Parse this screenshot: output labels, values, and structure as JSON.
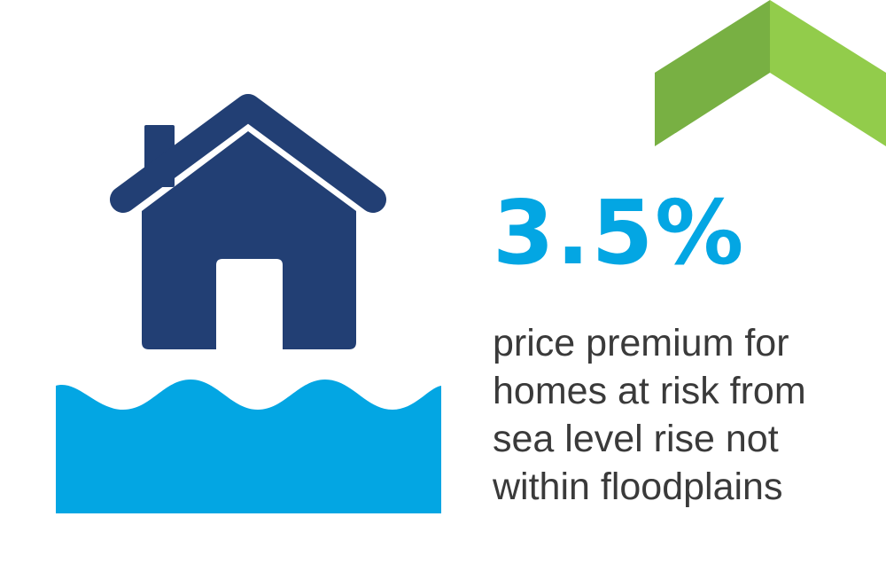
{
  "stat": {
    "value": "3.5%",
    "caption_lines": [
      "price premium for",
      "homes at risk from",
      "sea level rise not",
      "within floodplains"
    ]
  },
  "icons": {
    "house": "house-icon",
    "water": "water-waves-icon",
    "chevron": "up-chevron-icon"
  },
  "colors": {
    "house": "#223f74",
    "water": "#03a6e3",
    "accent_value": "#03a6e3",
    "chevron_left": "#78b043",
    "chevron_right": "#92cc4b",
    "caption": "#3a3a3a",
    "background": "#ffffff"
  }
}
